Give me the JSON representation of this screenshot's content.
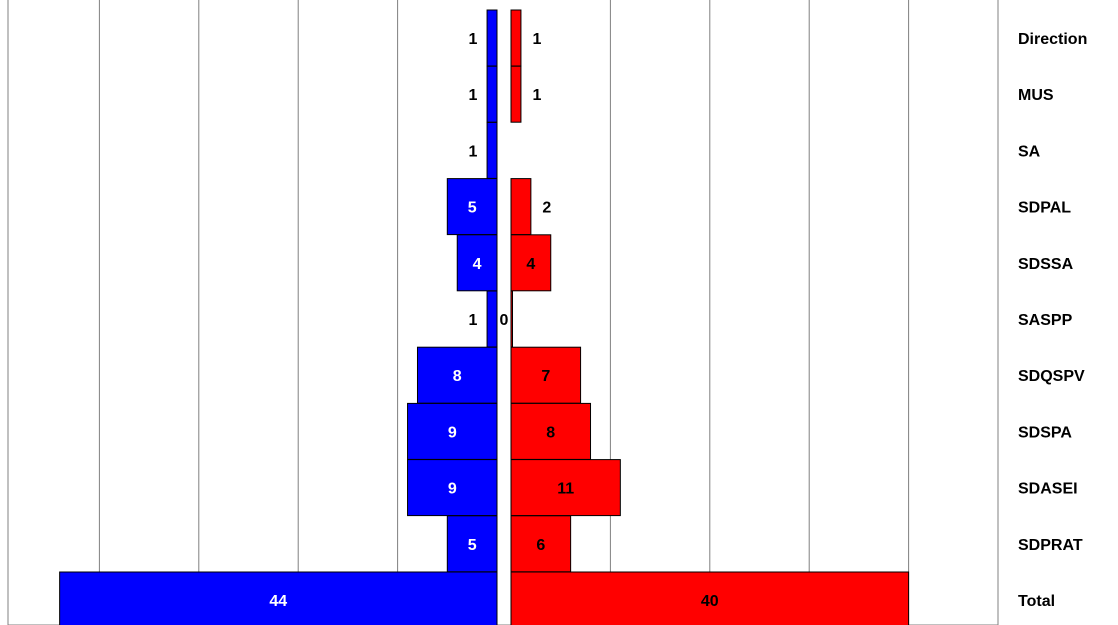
{
  "chart_data": {
    "type": "bar",
    "orientation": "horizontal-butterfly",
    "categories": [
      "Direction",
      "MUS",
      "SA",
      "SDPAL",
      "SDSSA",
      "SASPP",
      "SDQSPV",
      "SDSPA",
      "SDASEI",
      "SDPRAT",
      "Total"
    ],
    "series": [
      {
        "side": "left",
        "color": "#0000ff",
        "values": [
          1,
          1,
          1,
          5,
          4,
          1,
          8,
          9,
          9,
          5,
          44
        ]
      },
      {
        "side": "right",
        "color": "#ff0000",
        "values": [
          1,
          1,
          null,
          2,
          4,
          0,
          7,
          8,
          11,
          6,
          40
        ]
      }
    ],
    "grid": true,
    "legend": "none"
  }
}
